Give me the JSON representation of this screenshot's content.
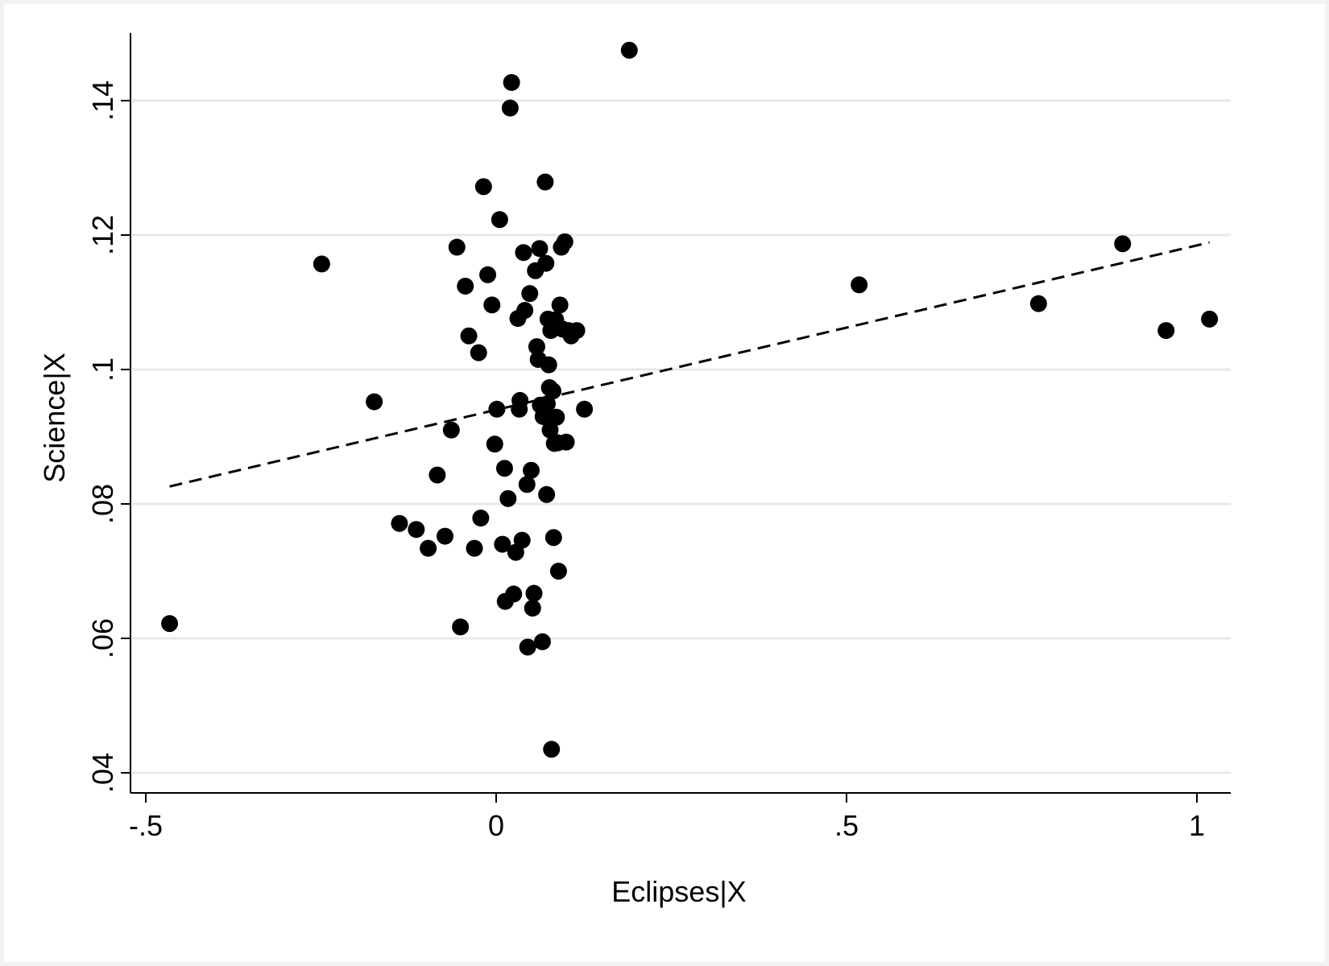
{
  "chart_data": {
    "type": "scatter",
    "title": "",
    "xlabel": "Eclipses|X",
    "ylabel": "Science|X",
    "xlim": [
      -0.53,
      1.05
    ],
    "ylim": [
      0.037,
      0.151
    ],
    "grid": "horizontal",
    "x_ticks": [
      {
        "value": -0.5,
        "label": "-.5"
      },
      {
        "value": 0,
        "label": "0"
      },
      {
        "value": 0.5,
        "label": ".5"
      },
      {
        "value": 1,
        "label": "1"
      }
    ],
    "y_ticks": [
      {
        "value": 0.04,
        "label": ".04"
      },
      {
        "value": 0.06,
        "label": ".06"
      },
      {
        "value": 0.08,
        "label": ".08"
      },
      {
        "value": 0.1,
        "label": ".1"
      },
      {
        "value": 0.12,
        "label": ".12"
      },
      {
        "value": 0.14,
        "label": ".14"
      }
    ],
    "points": [
      [
        -0.466,
        0.0622
      ],
      [
        -0.249,
        0.1157
      ],
      [
        -0.174,
        0.0952
      ],
      [
        -0.138,
        0.0771
      ],
      [
        -0.114,
        0.0762
      ],
      [
        -0.097,
        0.0734
      ],
      [
        -0.084,
        0.0843
      ],
      [
        -0.073,
        0.0752
      ],
      [
        -0.064,
        0.091
      ],
      [
        -0.056,
        0.1182
      ],
      [
        -0.051,
        0.0617
      ],
      [
        -0.044,
        0.1124
      ],
      [
        -0.039,
        0.105
      ],
      [
        -0.031,
        0.0734
      ],
      [
        -0.025,
        0.1025
      ],
      [
        -0.022,
        0.0779
      ],
      [
        -0.018,
        0.1272
      ],
      [
        -0.012,
        0.1141
      ],
      [
        -0.006,
        0.1096
      ],
      [
        -0.002,
        0.0889
      ],
      [
        0.001,
        0.0941
      ],
      [
        0.005,
        0.1223
      ],
      [
        0.009,
        0.074
      ],
      [
        0.012,
        0.0853
      ],
      [
        0.013,
        0.0655
      ],
      [
        0.017,
        0.0808
      ],
      [
        0.02,
        0.1389
      ],
      [
        0.022,
        0.1427
      ],
      [
        0.025,
        0.0666
      ],
      [
        0.028,
        0.0728
      ],
      [
        0.031,
        0.1076
      ],
      [
        0.033,
        0.0941
      ],
      [
        0.034,
        0.0954
      ],
      [
        0.037,
        0.0746
      ],
      [
        0.039,
        0.1174
      ],
      [
        0.041,
        0.1088
      ],
      [
        0.044,
        0.0829
      ],
      [
        0.045,
        0.0587
      ],
      [
        0.048,
        0.1113
      ],
      [
        0.05,
        0.085
      ],
      [
        0.052,
        0.0645
      ],
      [
        0.054,
        0.0667
      ],
      [
        0.056,
        0.1147
      ],
      [
        0.058,
        0.1034
      ],
      [
        0.06,
        0.1015
      ],
      [
        0.062,
        0.118
      ],
      [
        0.063,
        0.0947
      ],
      [
        0.066,
        0.0595
      ],
      [
        0.067,
        0.093
      ],
      [
        0.068,
        0.0938
      ],
      [
        0.07,
        0.1279
      ],
      [
        0.071,
        0.1158
      ],
      [
        0.072,
        0.0814
      ],
      [
        0.073,
        0.0949
      ],
      [
        0.074,
        0.1075
      ],
      [
        0.075,
        0.1007
      ],
      [
        0.076,
        0.0973
      ],
      [
        0.077,
        0.091
      ],
      [
        0.078,
        0.1058
      ],
      [
        0.079,
        0.0435
      ],
      [
        0.081,
        0.0968
      ],
      [
        0.082,
        0.075
      ],
      [
        0.083,
        0.089
      ],
      [
        0.085,
        0.1074
      ],
      [
        0.086,
        0.0929
      ],
      [
        0.088,
        0.0891
      ],
      [
        0.089,
        0.07
      ],
      [
        0.091,
        0.1096
      ],
      [
        0.093,
        0.1182
      ],
      [
        0.095,
        0.106
      ],
      [
        0.098,
        0.119
      ],
      [
        0.1,
        0.0892
      ],
      [
        0.103,
        0.1058
      ],
      [
        0.107,
        0.105
      ],
      [
        0.115,
        0.1058
      ],
      [
        0.126,
        0.0941
      ],
      [
        0.19,
        0.1475
      ],
      [
        0.518,
        0.1126
      ],
      [
        0.774,
        0.1098
      ],
      [
        0.894,
        0.1187
      ],
      [
        0.956,
        0.1058
      ],
      [
        1.018,
        0.1075
      ]
    ],
    "fit_line": {
      "style": "dashed",
      "x": [
        -0.466,
        1.018
      ],
      "y": [
        0.0826,
        0.1189
      ]
    }
  }
}
